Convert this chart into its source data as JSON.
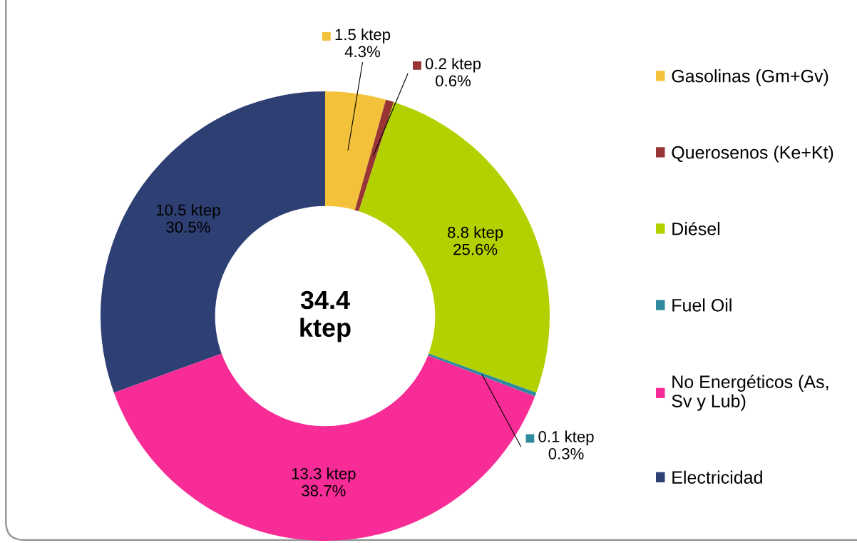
{
  "chart_data": {
    "type": "donut",
    "categories": [
      "Gasolinas (Gm+Gv)",
      "Querosenos (Ke+Kt)",
      "Diésel",
      "Fuel Oil",
      "No Energéticos (As, Sv y Lub)",
      "Electricidad"
    ],
    "values": [
      1.5,
      0.2,
      8.8,
      0.1,
      13.3,
      10.5
    ],
    "colors": [
      "#f3c13a",
      "#993535",
      "#b3d000",
      "#2e8b9f",
      "#f72c96",
      "#2e3f74"
    ],
    "value_labels": [
      "1.5 ktep\n4.3%",
      "0.2 ktep\n0.6%",
      "8.8 ktep\n25.6%",
      "0.1 ktep\n0.3%",
      "13.3 ktep\n38.7%",
      "10.5 ktep\n30.5%"
    ],
    "annotations": [
      "34.4\nktep"
    ],
    "legend": "right"
  }
}
